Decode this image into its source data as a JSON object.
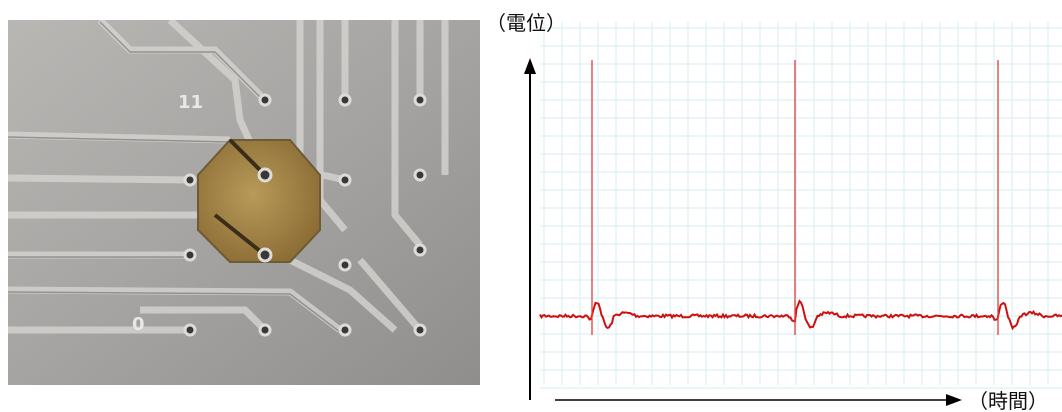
{
  "photo": {
    "labels": [
      "11",
      "0"
    ]
  },
  "chart": {
    "y_axis_label": "（電位）",
    "x_axis_label": "（時間）"
  }
}
